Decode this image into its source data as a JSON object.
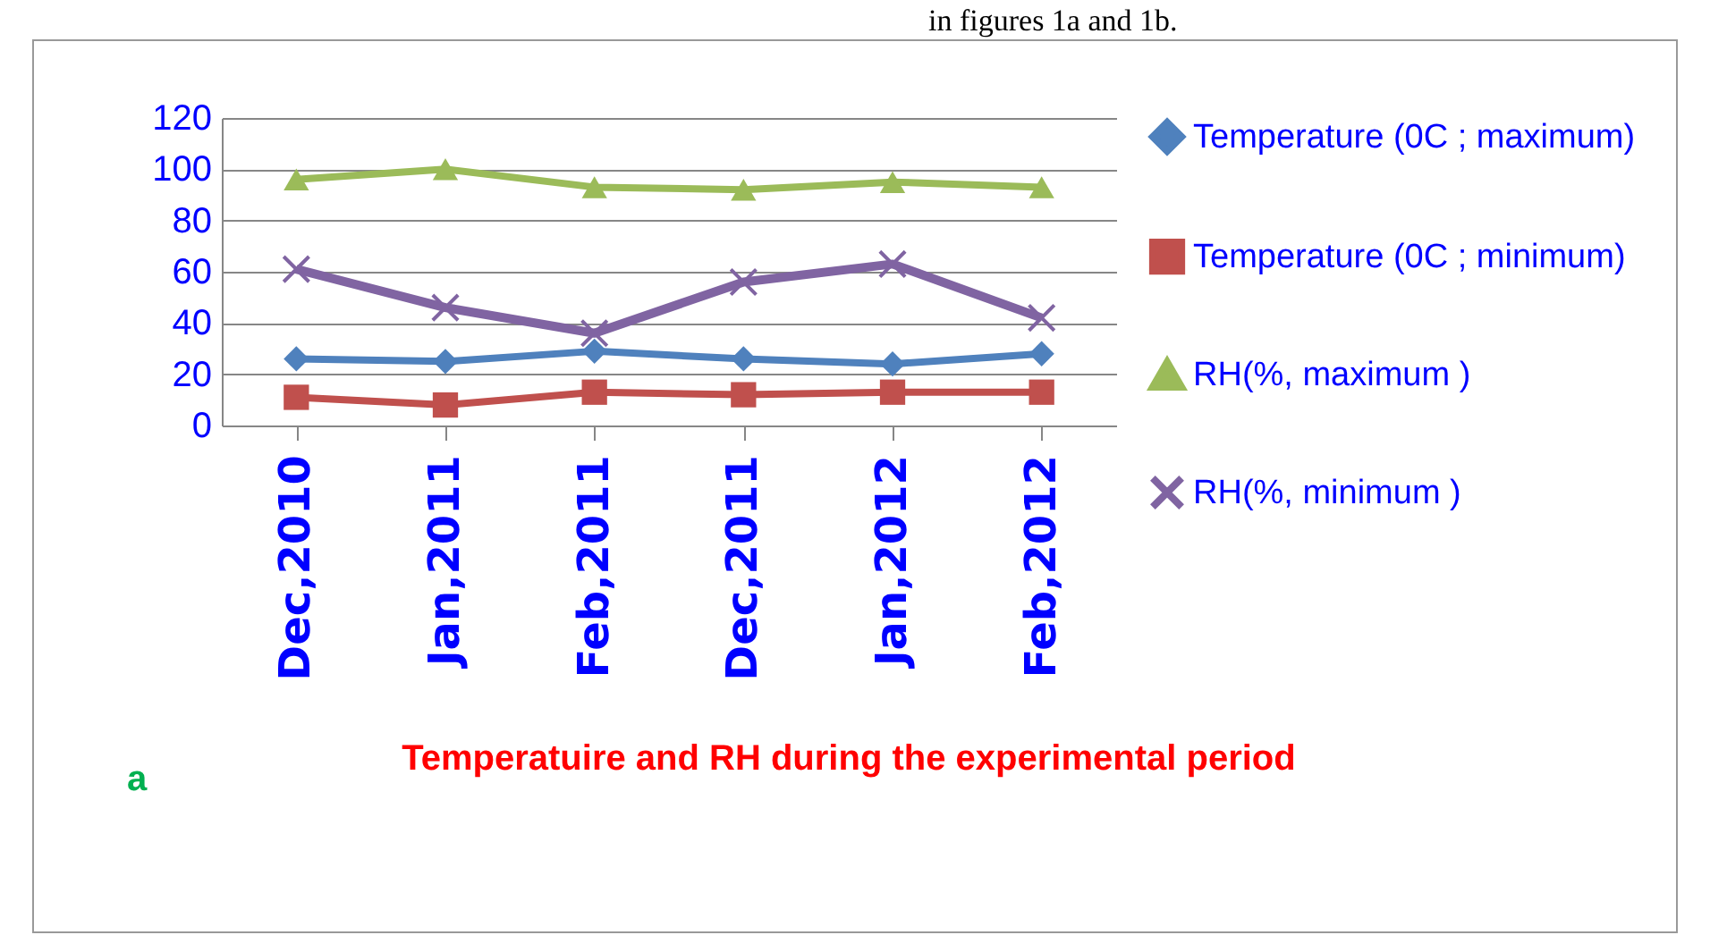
{
  "chart_data": {
    "type": "line",
    "title": "Temperatuire  and RH during the experimental period",
    "annotations": [
      "a",
      "in figures 1a and 1b."
    ],
    "categories": [
      "Dec,2010",
      "Jan,2011",
      "Feb,2011",
      "Dec,2011",
      "Jan,2012",
      "Feb,2012"
    ],
    "series": [
      {
        "name": "Temperature (0C ; maximum)",
        "color": "#4f81bd",
        "marker": "diamond",
        "values": [
          26,
          25,
          29,
          26,
          24,
          28
        ]
      },
      {
        "name": "Temperature (0C ; minimum)",
        "color": "#c0504d",
        "marker": "square",
        "values": [
          11,
          8,
          13,
          12,
          13,
          13
        ]
      },
      {
        "name": "RH(%, maximum )",
        "color": "#9bbb59",
        "marker": "triangle",
        "values": [
          96,
          100,
          93,
          92,
          95,
          93
        ]
      },
      {
        "name": "RH(%, minimum )",
        "color": "#8064a2",
        "marker": "cross",
        "values": [
          61,
          46,
          36,
          56,
          63,
          42
        ]
      }
    ],
    "ylim": [
      0,
      120
    ],
    "yticks": [
      0,
      20,
      40,
      60,
      80,
      100,
      120
    ],
    "grid": "y",
    "legend": "right"
  }
}
